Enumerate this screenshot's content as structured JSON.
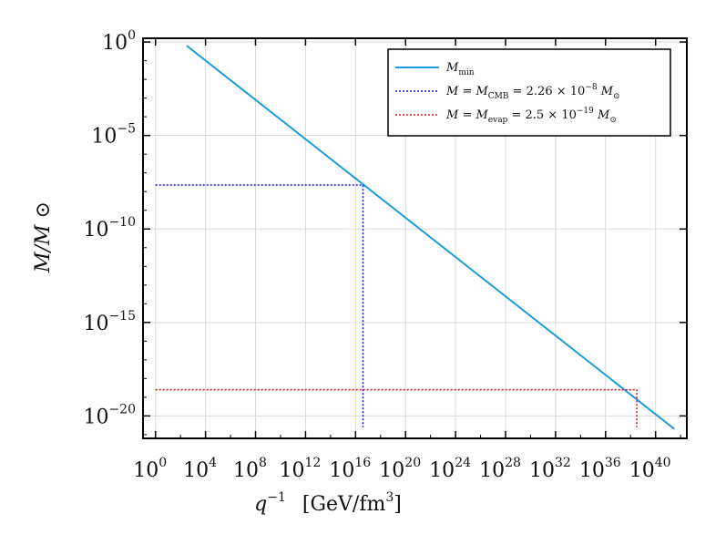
{
  "chart_data": {
    "type": "line",
    "x_scale": "log10",
    "y_scale": "log10",
    "xlim_exp": [
      -1,
      42.5
    ],
    "ylim_exp": [
      -21.2,
      0.2
    ],
    "grid": true,
    "legend_position": "top-right",
    "xlabel": {
      "base": "q",
      "exp": "−1",
      "unit": "[GeV/fm",
      "unit_exp": "3",
      "unit_close": "]"
    },
    "ylabel": "M/M ⊙",
    "xticks": [
      {
        "base": "10",
        "exp": "0",
        "v": 0
      },
      {
        "base": "10",
        "exp": "4",
        "v": 4
      },
      {
        "base": "10",
        "exp": "8",
        "v": 8
      },
      {
        "base": "10",
        "exp": "12",
        "v": 12
      },
      {
        "base": "10",
        "exp": "16",
        "v": 16
      },
      {
        "base": "10",
        "exp": "20",
        "v": 20
      },
      {
        "base": "10",
        "exp": "24",
        "v": 24
      },
      {
        "base": "10",
        "exp": "28",
        "v": 28
      },
      {
        "base": "10",
        "exp": "32",
        "v": 32
      },
      {
        "base": "10",
        "exp": "36",
        "v": 36
      },
      {
        "base": "10",
        "exp": "40",
        "v": 40
      }
    ],
    "yticks": [
      {
        "base": "10",
        "exp": "0",
        "v": 0
      },
      {
        "base": "10",
        "exp": "−5",
        "v": -5
      },
      {
        "base": "10",
        "exp": "−10",
        "v": -10
      },
      {
        "base": "10",
        "exp": "−15",
        "v": -15
      },
      {
        "base": "10",
        "exp": "−20",
        "v": -20
      }
    ],
    "series": [
      {
        "key": "mmin",
        "color": "#1f9bde",
        "style": "solid",
        "points_log10": [
          [
            2.5,
            -0.2
          ],
          [
            41.5,
            -20.7
          ]
        ],
        "legend": {
          "main": "M",
          "sub": "min",
          "tail": ""
        }
      },
      {
        "key": "cmb",
        "color": "#1a1ad6",
        "style": "dotted",
        "points_log10": [
          [
            0,
            -7.65
          ],
          [
            16.6,
            -7.65
          ],
          [
            16.6,
            -20.6
          ]
        ],
        "legend": {
          "main": "M = M",
          "sub": "CMB",
          "tail": " = 2.26 × 10",
          "sup": "−8",
          "tail2": " M",
          "sub2": "⊙"
        }
      },
      {
        "key": "evap",
        "color": "#e31a1a",
        "style": "dotted",
        "points_log10": [
          [
            0,
            -18.6
          ],
          [
            38.5,
            -18.6
          ],
          [
            38.5,
            -20.6
          ]
        ],
        "legend": {
          "main": "M = M",
          "sub": "evap",
          "tail": " = 2.5 × 10",
          "sup": "−19",
          "tail2": " M",
          "sub2": "⊙"
        }
      }
    ]
  }
}
